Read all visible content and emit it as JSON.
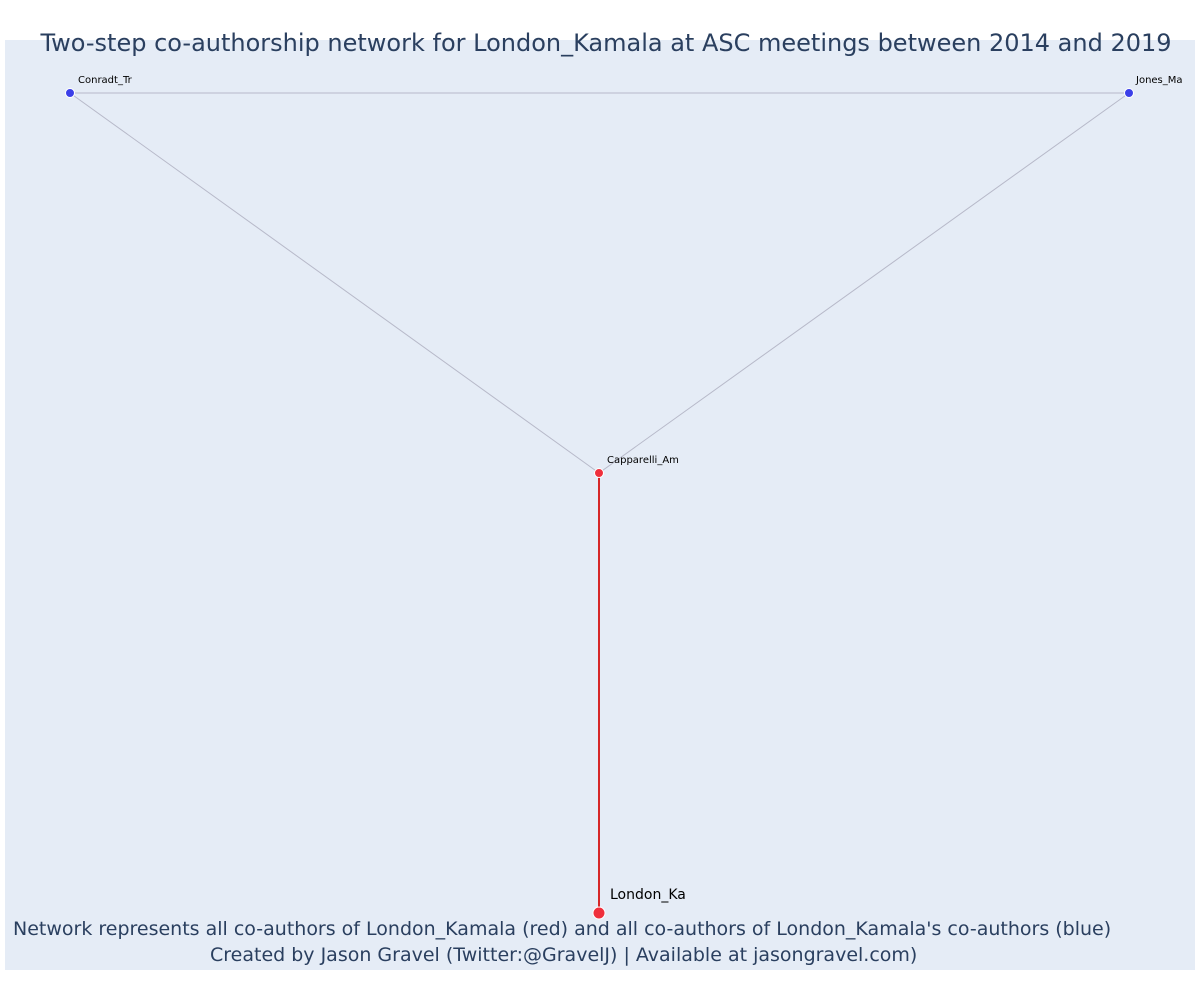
{
  "title": "Two-step co-authorship network for London_Kamala at ASC meetings between 2014 and 2019",
  "caption": {
    "line1": "Network represents all co-authors of London_Kamala (red) and all co-authors of London_Kamala's co-authors (blue)",
    "line2": "Created by Jason Gravel (Twitter:@GravelJ) | Available at jasongravel.com)"
  },
  "colors": {
    "background": "#e5ecf6",
    "text": "#2a3f5f",
    "ego": "#ef2f3c",
    "coauthor": "#ef2f3c",
    "second_step": "#3b3fe8",
    "ego_edge": "#d62728",
    "other_edge": "#b7b9c9"
  },
  "nodes": [
    {
      "id": "London_Ka",
      "label": "London_Ka",
      "group": "ego"
    },
    {
      "id": "Capparelli_Am",
      "label": "Capparelli_Am",
      "group": "coauthor"
    },
    {
      "id": "Conradt_Tr",
      "label": "Conradt_Tr",
      "group": "second_step"
    },
    {
      "id": "Jones_Ma",
      "label": "Jones_Ma",
      "group": "second_step"
    }
  ],
  "edges": [
    {
      "source": "London_Ka",
      "target": "Capparelli_Am",
      "type": "ego"
    },
    {
      "source": "Capparelli_Am",
      "target": "Conradt_Tr",
      "type": "other"
    },
    {
      "source": "Capparelli_Am",
      "target": "Jones_Ma",
      "type": "other"
    },
    {
      "source": "Conradt_Tr",
      "target": "Jones_Ma",
      "type": "other"
    }
  ]
}
